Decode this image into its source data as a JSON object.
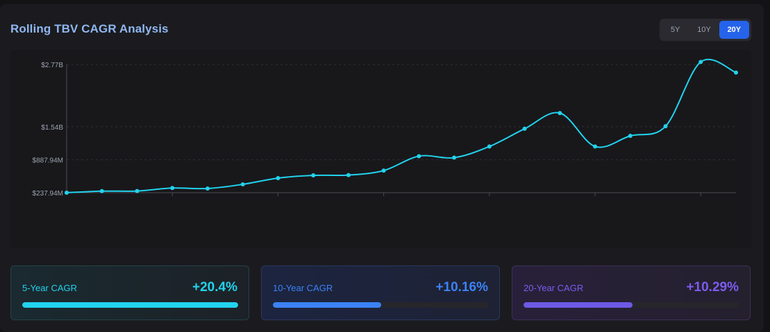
{
  "header": {
    "title": "Rolling TBV CAGR Analysis",
    "ranges": [
      "5Y",
      "10Y",
      "20Y"
    ],
    "active_range": "20Y"
  },
  "chart_data": {
    "type": "line",
    "y_tick_labels": [
      "$2.77B",
      "$1.54B",
      "$887.94M",
      "$237.94M"
    ],
    "y_ticks": [
      2.77,
      1.54,
      0.88794,
      0.23794
    ],
    "ylim": [
      0.23794,
      2.77
    ],
    "ylabel": "",
    "xlabel": "",
    "grid": true,
    "series": [
      {
        "color": "#22d3ee",
        "values": [
          0.238,
          0.268,
          0.271,
          0.33,
          0.32,
          0.403,
          0.526,
          0.58,
          0.586,
          0.674,
          0.959,
          0.93,
          1.15,
          1.5,
          1.81,
          1.15,
          1.36,
          1.55,
          2.82,
          2.61
        ]
      }
    ]
  },
  "stats": [
    {
      "label": "5-Year CAGR",
      "value": "+20.4%",
      "progress": 1.0,
      "color": "#22d3ee"
    },
    {
      "label": "10-Year CAGR",
      "value": "+10.16%",
      "progress": 0.5,
      "color": "#3b82f6"
    },
    {
      "label": "20-Year CAGR",
      "value": "+10.29%",
      "progress": 0.505,
      "color": "#7c5cf0"
    }
  ]
}
